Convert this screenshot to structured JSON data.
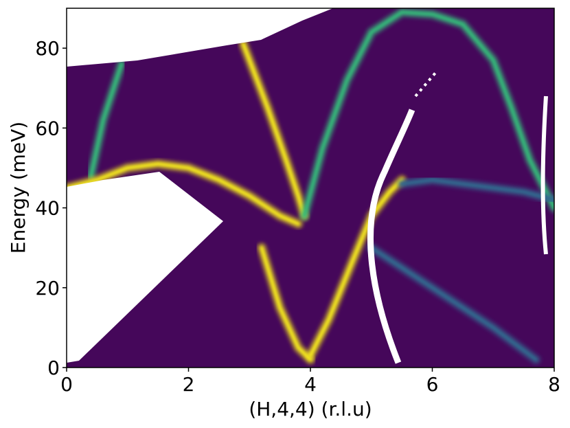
{
  "chart_data": {
    "type": "line",
    "xlabel": "(H,4,4) (r.l.u)",
    "ylabel": "Energy (meV)",
    "xlim": [
      0,
      8
    ],
    "ylim": [
      0,
      90
    ],
    "xticks": [
      0,
      2,
      4,
      6,
      8
    ],
    "yticks": [
      0,
      20,
      40,
      60,
      80
    ],
    "background": "#45075a",
    "series": [
      {
        "color": "#35b779",
        "x": [
          0.4,
          0.6,
          0.9
        ],
        "values": [
          48,
          62,
          76
        ]
      },
      {
        "color": "#f3e61c",
        "x": [
          0,
          0.5,
          1,
          1.5,
          2,
          2.5,
          3,
          3.5,
          3.8
        ],
        "values": [
          45,
          47,
          50,
          51,
          50,
          47,
          43,
          38,
          36
        ]
      },
      {
        "color": "#f3e61c",
        "x": [
          2.9,
          3.3,
          3.6,
          3.8,
          3.9
        ],
        "values": [
          81,
          65,
          52,
          43,
          38
        ]
      },
      {
        "color": "#f3e61c",
        "x": [
          3.2,
          3.5,
          3.8,
          4
        ],
        "values": [
          30,
          15,
          5,
          2
        ]
      },
      {
        "color": "#f3e61c",
        "x": [
          4,
          4.3,
          4.7,
          5,
          5.3,
          5.5
        ],
        "values": [
          3,
          12,
          27,
          38,
          44,
          47
        ]
      },
      {
        "color": "#35b779",
        "x": [
          3.9,
          4.2,
          4.6,
          5,
          5.5,
          6,
          6.5,
          7,
          7.3,
          7.6,
          8
        ],
        "values": [
          38,
          55,
          72,
          84,
          89,
          88.5,
          86,
          77,
          65,
          52,
          40
        ]
      },
      {
        "color": "#31688e",
        "x": [
          5.5,
          6,
          6.5,
          7,
          7.5,
          8
        ],
        "values": [
          46,
          47,
          46,
          45,
          44,
          42
        ]
      },
      {
        "color": "#31688e",
        "x": [
          5,
          6,
          7,
          7.7
        ],
        "values": [
          30,
          20,
          10,
          2
        ]
      }
    ]
  }
}
